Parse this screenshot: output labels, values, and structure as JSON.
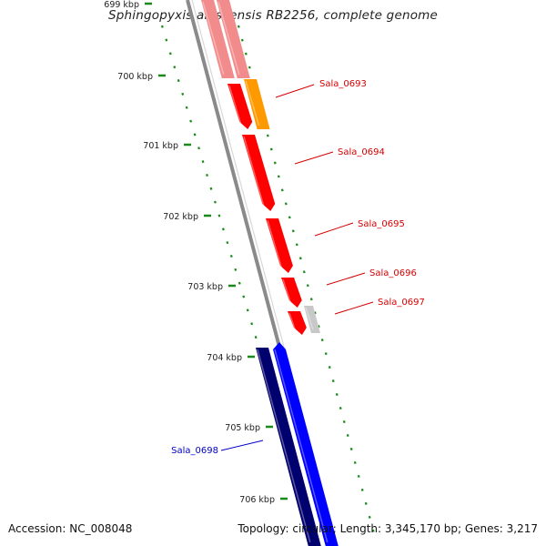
{
  "title": "Sphingopyxis alaskensis RB2256, complete genome",
  "footer": {
    "accession": "Accession: NC_008048",
    "stats": "Topology: circular; Length: 3,345,170 bp; Genes: 3,217"
  },
  "colors": {
    "forward_gene": "#ff0000",
    "forward_gene_light": "#f28b8b",
    "reverse_gene": "#0000ff",
    "reverse_gene_dark": "#00006e",
    "highlight_gene": "#ff9900",
    "grey_feature": "#c8c8c8",
    "backbone": "#8a8a8a",
    "tick": "#1a8a1a",
    "label_red": "#d40000",
    "label_blue": "#0000c8"
  },
  "ticks": [
    {
      "label": "699 kbp"
    },
    {
      "label": "700 kbp"
    },
    {
      "label": "701 kbp"
    },
    {
      "label": "702 kbp"
    },
    {
      "label": "703 kbp"
    },
    {
      "label": "704 kbp"
    },
    {
      "label": "705 kbp"
    },
    {
      "label": "706 kbp"
    }
  ],
  "gene_labels": [
    {
      "name": "Sala_0693",
      "color": "red"
    },
    {
      "name": "Sala_0694",
      "color": "red"
    },
    {
      "name": "Sala_0695",
      "color": "red"
    },
    {
      "name": "Sala_0696",
      "color": "red"
    },
    {
      "name": "Sala_0697",
      "color": "red"
    },
    {
      "name": "Sala_0698",
      "color": "blue"
    }
  ]
}
